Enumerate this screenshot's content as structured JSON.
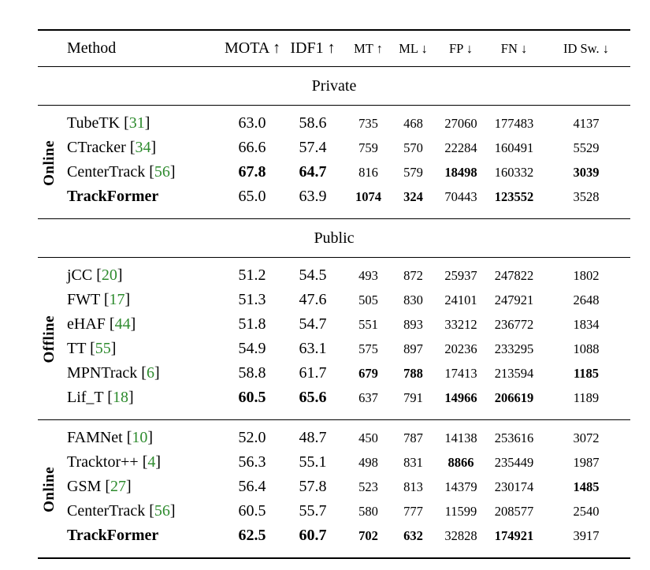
{
  "colors": {
    "citation_green": "#2e8b2e",
    "text": "#000000",
    "rule": "#000000",
    "background": "#ffffff"
  },
  "table": {
    "columns": [
      {
        "key": "method",
        "label": "Method",
        "arrow": "",
        "size": "large"
      },
      {
        "key": "mota",
        "label": "MOTA",
        "arrow": "↑",
        "size": "large"
      },
      {
        "key": "idf1",
        "label": "IDF1",
        "arrow": "↑",
        "size": "large"
      },
      {
        "key": "mt",
        "label": "MT",
        "arrow": "↑",
        "size": "small"
      },
      {
        "key": "ml",
        "label": "ML",
        "arrow": "↓",
        "size": "small"
      },
      {
        "key": "fp",
        "label": "FP",
        "arrow": "↓",
        "size": "small"
      },
      {
        "key": "fn",
        "label": "FN",
        "arrow": "↓",
        "size": "small"
      },
      {
        "key": "idsw",
        "label": "ID Sw.",
        "arrow": "↓",
        "size": "small"
      }
    ],
    "sections": [
      {
        "title": "Private",
        "groups": [
          {
            "label": "Online",
            "rows": [
              {
                "method": "TubeTK",
                "cite": "31",
                "bold_method": false,
                "values": [
                  "63.0",
                  "58.6",
                  "735",
                  "468",
                  "27060",
                  "177483",
                  "4137"
                ],
                "bold": []
              },
              {
                "method": "CTracker",
                "cite": "34",
                "bold_method": false,
                "values": [
                  "66.6",
                  "57.4",
                  "759",
                  "570",
                  "22284",
                  "160491",
                  "5529"
                ],
                "bold": []
              },
              {
                "method": "CenterTrack",
                "cite": "56",
                "bold_method": false,
                "values": [
                  "67.8",
                  "64.7",
                  "816",
                  "579",
                  "18498",
                  "160332",
                  "3039"
                ],
                "bold": [
                  0,
                  1,
                  4,
                  6
                ]
              },
              {
                "method": "TrackFormer",
                "cite": null,
                "bold_method": true,
                "values": [
                  "65.0",
                  "63.9",
                  "1074",
                  "324",
                  "70443",
                  "123552",
                  "3528"
                ],
                "bold": [
                  2,
                  3,
                  5
                ]
              }
            ]
          }
        ]
      },
      {
        "title": "Public",
        "groups": [
          {
            "label": "Offline",
            "rows": [
              {
                "method": "jCC",
                "cite": "20",
                "bold_method": false,
                "values": [
                  "51.2",
                  "54.5",
                  "493",
                  "872",
                  "25937",
                  "247822",
                  "1802"
                ],
                "bold": []
              },
              {
                "method": "FWT",
                "cite": "17",
                "bold_method": false,
                "values": [
                  "51.3",
                  "47.6",
                  "505",
                  "830",
                  "24101",
                  "247921",
                  "2648"
                ],
                "bold": []
              },
              {
                "method": "eHAF",
                "cite": "44",
                "bold_method": false,
                "values": [
                  "51.8",
                  "54.7",
                  "551",
                  "893",
                  "33212",
                  "236772",
                  "1834"
                ],
                "bold": []
              },
              {
                "method": "TT",
                "cite": "55",
                "bold_method": false,
                "values": [
                  "54.9",
                  "63.1",
                  "575",
                  "897",
                  "20236",
                  "233295",
                  "1088"
                ],
                "bold": []
              },
              {
                "method": "MPNTrack",
                "cite": "6",
                "bold_method": false,
                "values": [
                  "58.8",
                  "61.7",
                  "679",
                  "788",
                  "17413",
                  "213594",
                  "1185"
                ],
                "bold": [
                  2,
                  3,
                  6
                ]
              },
              {
                "method": "Lif_T",
                "cite": "18",
                "bold_method": false,
                "values": [
                  "60.5",
                  "65.6",
                  "637",
                  "791",
                  "14966",
                  "206619",
                  "1189"
                ],
                "bold": [
                  0,
                  1,
                  4,
                  5
                ]
              }
            ]
          },
          {
            "label": "Online",
            "rows": [
              {
                "method": "FAMNet",
                "cite": "10",
                "bold_method": false,
                "values": [
                  "52.0",
                  "48.7",
                  "450",
                  "787",
                  "14138",
                  "253616",
                  "3072"
                ],
                "bold": []
              },
              {
                "method": "Tracktor++",
                "cite": "4",
                "bold_method": false,
                "values": [
                  "56.3",
                  "55.1",
                  "498",
                  "831",
                  "8866",
                  "235449",
                  "1987"
                ],
                "bold": [
                  4
                ]
              },
              {
                "method": "GSM",
                "cite": "27",
                "bold_method": false,
                "values": [
                  "56.4",
                  "57.8",
                  "523",
                  "813",
                  "14379",
                  "230174",
                  "1485"
                ],
                "bold": [
                  6
                ]
              },
              {
                "method": "CenterTrack",
                "cite": "56",
                "bold_method": false,
                "values": [
                  "60.5",
                  "55.7",
                  "580",
                  "777",
                  "11599",
                  "208577",
                  "2540"
                ],
                "bold": []
              },
              {
                "method": "TrackFormer",
                "cite": null,
                "bold_method": true,
                "values": [
                  "62.5",
                  "60.7",
                  "702",
                  "632",
                  "32828",
                  "174921",
                  "3917"
                ],
                "bold": [
                  0,
                  1,
                  2,
                  3,
                  5
                ]
              }
            ]
          }
        ]
      }
    ]
  }
}
